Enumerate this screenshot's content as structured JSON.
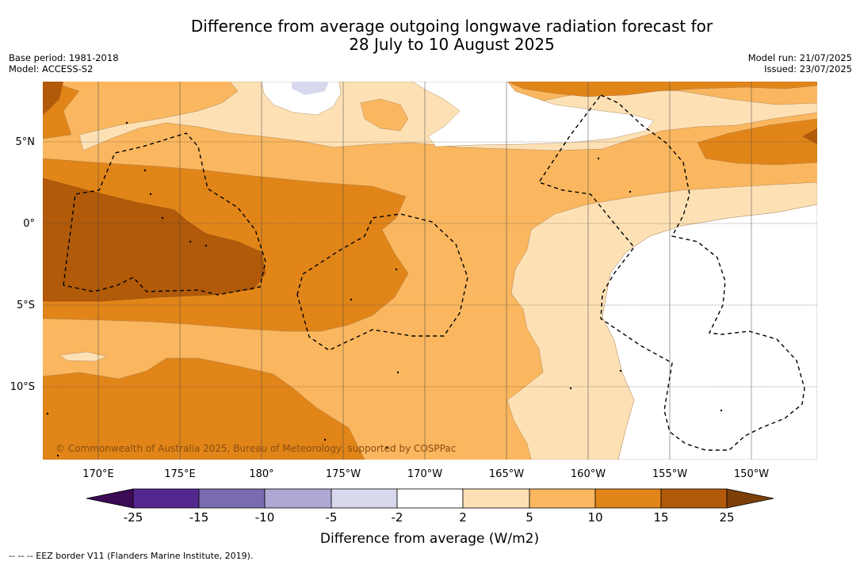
{
  "title_line1": "Difference from average outgoing longwave radiation forecast for",
  "title_line2": "28 July to 10 August 2025",
  "meta_left": [
    "Base period: 1981-2018",
    "Model: ACCESS-S2"
  ],
  "meta_right": [
    "Model run: 21/07/2025",
    "Issued: 23/07/2025"
  ],
  "credit": "© Commonwealth of Australia 2025, Bureau of Meteorology, supported by COSPPac",
  "footnote": "--  --  -- EEZ border V11 (Flanders Marine Institute, 2019).",
  "map": {
    "lon_ticks": [
      "170°E",
      "175°E",
      "180°",
      "175°W",
      "170°W",
      "165°W",
      "160°W",
      "155°W",
      "150°W"
    ],
    "lat_ticks": [
      "5°N",
      "0°",
      "5°S",
      "10°S"
    ]
  },
  "legend": {
    "title": "Difference from average (W/m2)",
    "levels": [
      "-25",
      "-15",
      "-10",
      "-5",
      "-2",
      "2",
      "5",
      "10",
      "15",
      "25"
    ],
    "colors": [
      "#3d0a55",
      "#54278f",
      "#7a6bae",
      "#b0a8d4",
      "#d9d9ee",
      "#ffffff",
      "#fde1b5",
      "#fab75f",
      "#e18519",
      "#b15a0a",
      "#7d3f08"
    ]
  }
}
